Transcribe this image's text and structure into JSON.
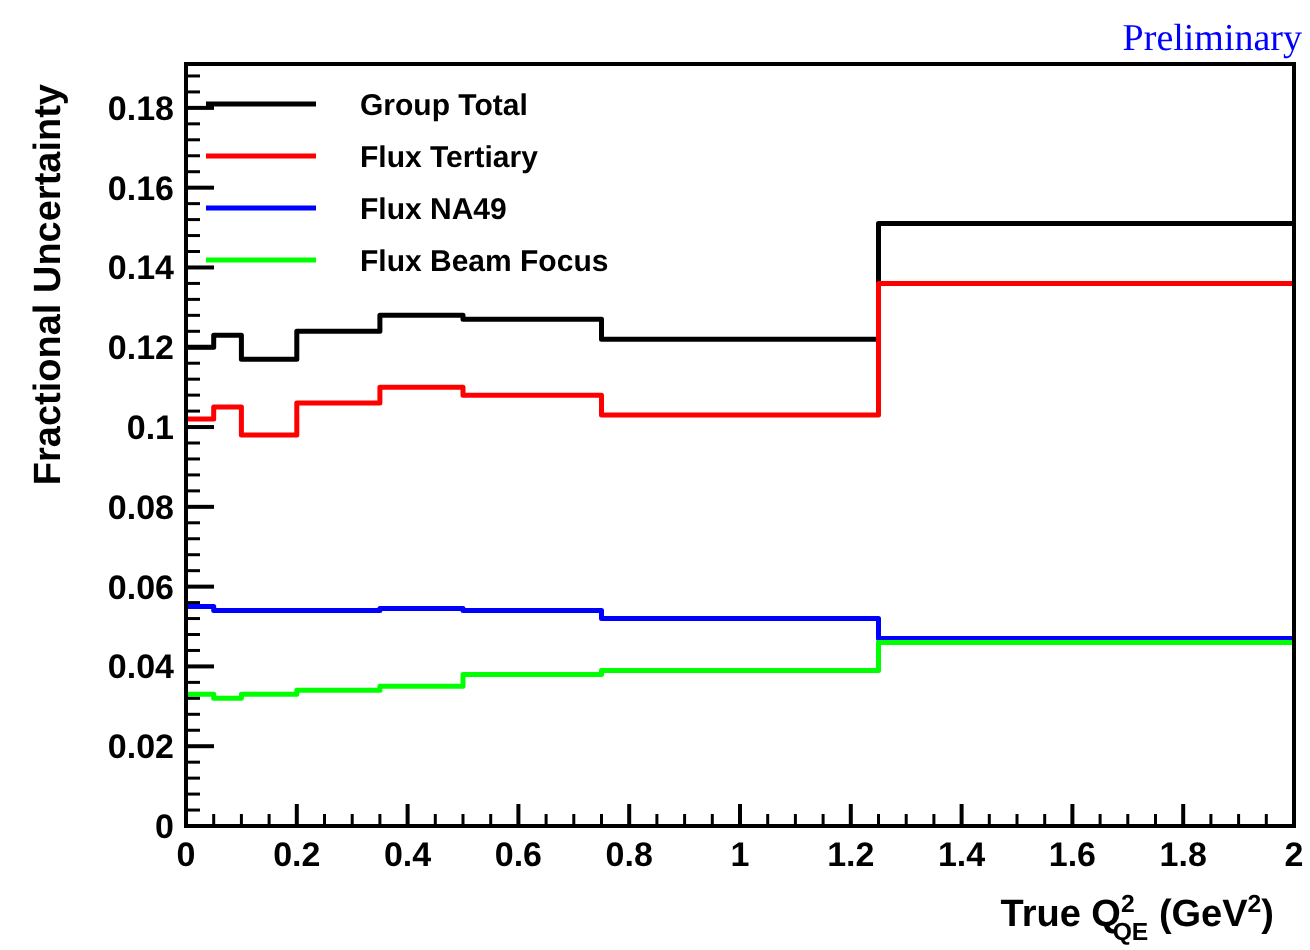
{
  "chart_data": {
    "type": "step",
    "xlabel": "True Q$^{2}$$_{QE}$ (GeV$^{2}$)",
    "ylabel": "Fractional Uncertainty",
    "annotations": [
      "Preliminary"
    ],
    "x": [
      0,
      0.05,
      0.1,
      0.2,
      0.35,
      0.5,
      0.75,
      1.25,
      2
    ],
    "xlim": [
      0,
      2
    ],
    "xticks": [
      0,
      0.2,
      0.4,
      0.6,
      0.8,
      1,
      1.2,
      1.4,
      1.6,
      1.8,
      2
    ],
    "ylim": [
      0,
      0.191
    ],
    "yticks": [
      0,
      0.02,
      0.04,
      0.06,
      0.08,
      0.1,
      0.12,
      0.14,
      0.16,
      0.18
    ],
    "legend": "top left",
    "grid": false,
    "line_style": "solid",
    "series": [
      {
        "name": "Group Total",
        "color": "#000000",
        "values": [
          0.12,
          0.123,
          0.117,
          0.124,
          0.128,
          0.127,
          0.122,
          0.151,
          0.151
        ]
      },
      {
        "name": "Flux Tertiary",
        "color": "#ff0000",
        "values": [
          0.102,
          0.105,
          0.098,
          0.106,
          0.11,
          0.108,
          0.103,
          0.136,
          0.136
        ]
      },
      {
        "name": "Flux NA49",
        "color": "#0000ff",
        "values": [
          0.055,
          0.054,
          0.054,
          0.054,
          0.0545,
          0.054,
          0.052,
          0.047,
          0.047
        ]
      },
      {
        "name": "Flux Beam Focus",
        "color": "#00ff00",
        "values": [
          0.033,
          0.032,
          0.033,
          0.034,
          0.035,
          0.038,
          0.039,
          0.046,
          0.046
        ]
      }
    ]
  }
}
